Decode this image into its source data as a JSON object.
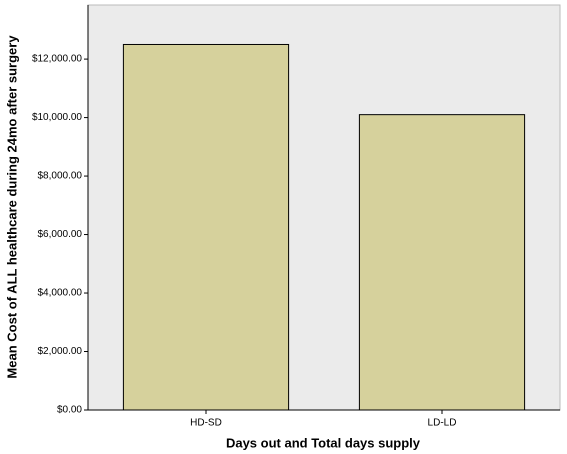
{
  "chart_data": {
    "type": "bar",
    "x_label": "Days out and Total days supply",
    "y_label": "Mean Cost of ALL healthcare during 24mo after surgery",
    "categories": [
      "HD-SD",
      "LD-LD"
    ],
    "values": [
      12500,
      10100
    ],
    "color": "#d6d19c",
    "ylim": [
      0,
      13850
    ],
    "yticks": [
      {
        "value": 0,
        "label": "$0.00"
      },
      {
        "value": 2000,
        "label": "$2,000.00"
      },
      {
        "value": 4000,
        "label": "$4,000.00"
      },
      {
        "value": 6000,
        "label": "$6,000.00"
      },
      {
        "value": 8000,
        "label": "$8,000.00"
      },
      {
        "value": 10000,
        "label": "$10,000.00"
      },
      {
        "value": 12000,
        "label": "$12,000.00"
      }
    ]
  }
}
